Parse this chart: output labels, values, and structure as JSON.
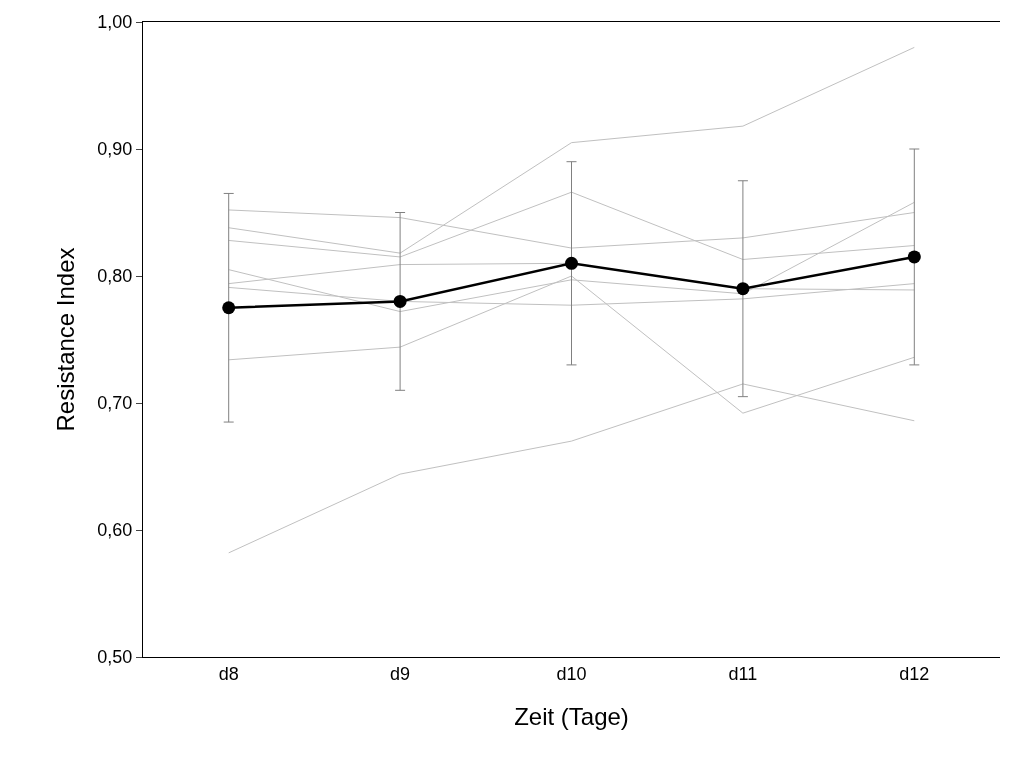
{
  "chart_data": {
    "type": "line",
    "xlabel": "Zeit (Tage)",
    "ylabel": "Resistance Index",
    "categories": [
      "d8",
      "d9",
      "d10",
      "d11",
      "d12"
    ],
    "ylim": [
      0.5,
      1.0
    ],
    "yticks": [
      {
        "value": 0.5,
        "label": "0,50"
      },
      {
        "value": 0.6,
        "label": "0,60"
      },
      {
        "value": 0.7,
        "label": "0,70"
      },
      {
        "value": 0.8,
        "label": "0,80"
      },
      {
        "value": 0.9,
        "label": "0,90"
      },
      {
        "value": 1.0,
        "label": "1,00"
      }
    ],
    "series": [
      {
        "color": "#c0c0c0",
        "marker": "none",
        "values": [
          0.852,
          0.846,
          0.822,
          0.83,
          0.85
        ]
      },
      {
        "color": "#c0c0c0",
        "marker": "none",
        "values": [
          0.838,
          0.818,
          0.905,
          0.918,
          0.98
        ]
      },
      {
        "color": "#c0c0c0",
        "marker": "none",
        "values": [
          0.828,
          0.815,
          0.866,
          0.813,
          0.824
        ]
      },
      {
        "color": "#c0c0c0",
        "marker": "none",
        "values": [
          0.805,
          0.772,
          0.797,
          0.786,
          0.858
        ]
      },
      {
        "color": "#c0c0c0",
        "marker": "none",
        "values": [
          0.794,
          0.809,
          0.81,
          0.79,
          0.789
        ]
      },
      {
        "color": "#c0c0c0",
        "marker": "none",
        "values": [
          0.791,
          0.78,
          0.777,
          0.782,
          0.794
        ]
      },
      {
        "color": "#c0c0c0",
        "marker": "none",
        "values": [
          0.734,
          0.744,
          0.8,
          0.692,
          0.736
        ]
      },
      {
        "color": "#c0c0c0",
        "marker": "none",
        "values": [
          0.582,
          0.644,
          0.67,
          0.715,
          0.686
        ]
      },
      {
        "color": "#000000",
        "marker": "circle",
        "values": [
          0.775,
          0.78,
          0.81,
          0.79,
          0.815
        ],
        "errors": [
          [
            0.685,
            0.865
          ],
          [
            0.71,
            0.85
          ],
          [
            0.73,
            0.89
          ],
          [
            0.705,
            0.875
          ],
          [
            0.73,
            0.9
          ]
        ]
      }
    ]
  }
}
